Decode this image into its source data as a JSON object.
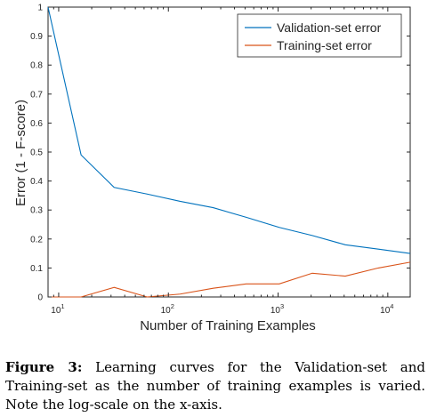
{
  "chart_data": {
    "type": "line",
    "xscale": "log",
    "xlim": [
      8,
      16000
    ],
    "ylim": [
      0,
      1
    ],
    "xlabel": "Number of Training Examples",
    "ylabel": "Error (1 - F-score)",
    "xticks": [
      {
        "value": 10,
        "base": "10",
        "exp": "1"
      },
      {
        "value": 100,
        "base": "10",
        "exp": "2"
      },
      {
        "value": 1000,
        "base": "10",
        "exp": "3"
      },
      {
        "value": 10000,
        "base": "10",
        "exp": "4"
      }
    ],
    "yticks": [
      {
        "value": 0,
        "label": "0"
      },
      {
        "value": 0.1,
        "label": "0.1"
      },
      {
        "value": 0.2,
        "label": "0.2"
      },
      {
        "value": 0.3,
        "label": "0.3"
      },
      {
        "value": 0.4,
        "label": "0.4"
      },
      {
        "value": 0.5,
        "label": "0.5"
      },
      {
        "value": 0.6,
        "label": "0.6"
      },
      {
        "value": 0.7,
        "label": "0.7"
      },
      {
        "value": 0.8,
        "label": "0.8"
      },
      {
        "value": 0.9,
        "label": "0.9"
      },
      {
        "value": 1,
        "label": "1"
      }
    ],
    "grid": false,
    "legend_position": "top-right",
    "series": [
      {
        "name": "Validation-set error",
        "color": "#0072BD",
        "points": [
          [
            8,
            1.0
          ],
          [
            16,
            0.49
          ],
          [
            32,
            0.378
          ],
          [
            64,
            0.355
          ],
          [
            128,
            0.33
          ],
          [
            256,
            0.308
          ],
          [
            512,
            0.275
          ],
          [
            1024,
            0.24
          ],
          [
            2048,
            0.212
          ],
          [
            4096,
            0.18
          ],
          [
            8192,
            0.165
          ],
          [
            16000,
            0.15
          ]
        ]
      },
      {
        "name": "Training-set error",
        "color": "#D95319",
        "points": [
          [
            8,
            0.0
          ],
          [
            16,
            0.0
          ],
          [
            32,
            0.033
          ],
          [
            64,
            0.0
          ],
          [
            128,
            0.01
          ],
          [
            256,
            0.03
          ],
          [
            512,
            0.045
          ],
          [
            1024,
            0.045
          ],
          [
            2048,
            0.082
          ],
          [
            4096,
            0.072
          ],
          [
            8192,
            0.1
          ],
          [
            16000,
            0.12
          ]
        ]
      }
    ]
  },
  "caption": {
    "label": "Figure 3:",
    "text": "Learning curves for the Validation-set and Training-set as the number of training examples is varied. Note the log-scale on the x-axis."
  }
}
